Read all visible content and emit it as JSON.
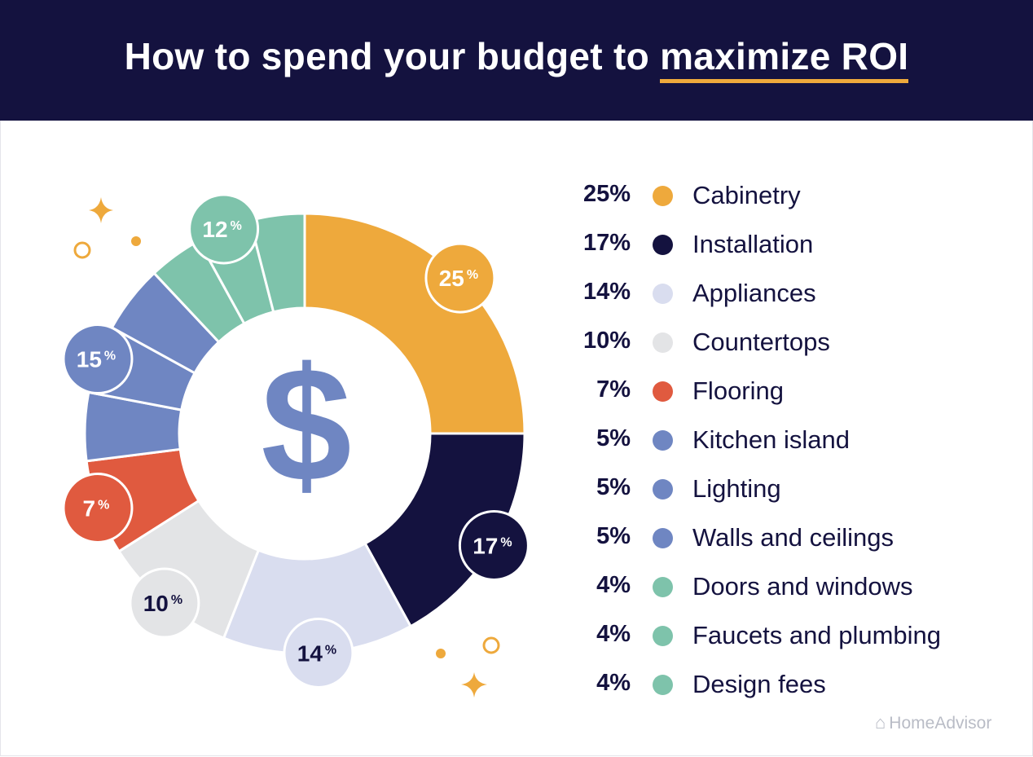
{
  "title": {
    "prefix": "How to spend your budget to ",
    "highlight": "maximize ROI"
  },
  "brand": {
    "name": "HomeAdvisor",
    "icon": "house-icon"
  },
  "center_icon": {
    "glyph": "$",
    "name": "dollar-sign-icon",
    "color": "#6f86c2"
  },
  "colors": {
    "header_bg": "#14123f",
    "accent_orange": "#eea93c",
    "navy": "#14123f",
    "lavender": "#d9ddef",
    "light_gray": "#e3e4e6",
    "red": "#e05a3f",
    "blue": "#6f86c2",
    "green": "#7ec3ab"
  },
  "chart_data": {
    "type": "pie",
    "variant": "donut",
    "series": [
      {
        "label": "Cabinetry",
        "pct_label": "25%",
        "value": 25,
        "color": "#eea93c"
      },
      {
        "label": "Installation",
        "pct_label": "17%",
        "value": 17,
        "color": "#14123f"
      },
      {
        "label": "Appliances",
        "pct_label": "14%",
        "value": 14,
        "color": "#d9ddef"
      },
      {
        "label": "Countertops",
        "pct_label": "10%",
        "value": 10,
        "color": "#e3e4e6"
      },
      {
        "label": "Flooring",
        "pct_label": "7%",
        "value": 7,
        "color": "#e05a3f"
      },
      {
        "label": "Kitchen island",
        "pct_label": "5%",
        "value": 5,
        "color": "#6f86c2"
      },
      {
        "label": "Lighting",
        "pct_label": "5%",
        "value": 5,
        "color": "#6f86c2"
      },
      {
        "label": "Walls and ceilings",
        "pct_label": "5%",
        "value": 5,
        "color": "#6f86c2"
      },
      {
        "label": "Doors and windows",
        "pct_label": "4%",
        "value": 4,
        "color": "#7ec3ab"
      },
      {
        "label": "Faucets and plumbing",
        "pct_label": "4%",
        "value": 4,
        "color": "#7ec3ab"
      },
      {
        "label": "Design fees",
        "pct_label": "4%",
        "value": 4,
        "color": "#7ec3ab"
      }
    ],
    "group_badges": [
      {
        "number": "25",
        "unit": "%",
        "value": 25,
        "color": "#eea93c",
        "text_color": "#ffffff"
      },
      {
        "number": "17",
        "unit": "%",
        "value": 17,
        "color": "#14123f",
        "text_color": "#ffffff"
      },
      {
        "number": "14",
        "unit": "%",
        "value": 14,
        "color": "#d9ddef",
        "text_color": "#14123f"
      },
      {
        "number": "10",
        "unit": "%",
        "value": 10,
        "color": "#e3e4e6",
        "text_color": "#14123f"
      },
      {
        "number": "7",
        "unit": "%",
        "value": 7,
        "color": "#e05a3f",
        "text_color": "#ffffff"
      },
      {
        "number": "15",
        "unit": "%",
        "value": 15,
        "color": "#6f86c2",
        "text_color": "#ffffff"
      },
      {
        "number": "12",
        "unit": "%",
        "value": 12,
        "color": "#7ec3ab",
        "text_color": "#ffffff"
      }
    ]
  }
}
